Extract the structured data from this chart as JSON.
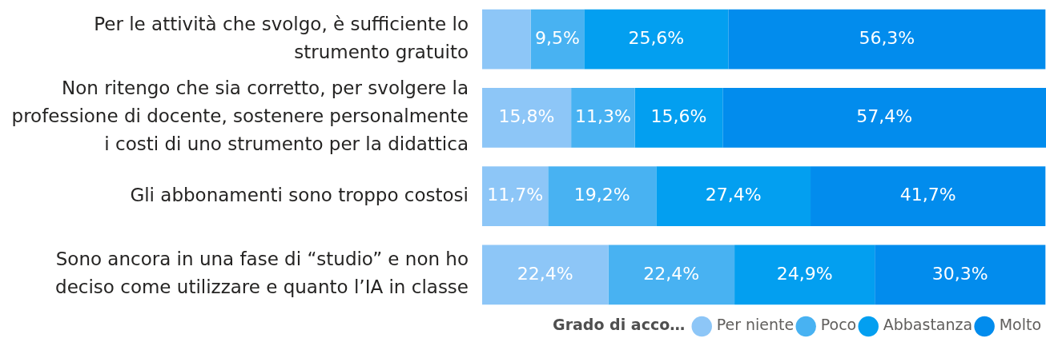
{
  "chart_data": {
    "type": "bar",
    "orientation": "horizontal",
    "stacked": true,
    "categories": [
      "Per le attività che svolgo, è sufficiente lo strumento gratuito",
      "Non ritengo che sia corretto, per svolgere la professione di docente, sostenere personalmente i costi di uno strumento per la didattica",
      "Gli abbonamenti sono troppo costosi",
      "Sono ancora in una fase di “studio” e non ho deciso come utilizzare e quanto l’IA in classe"
    ],
    "series": [
      {
        "name": "Per niente",
        "color": "#8dc6f7",
        "values": [
          8.6,
          15.8,
          11.7,
          22.4
        ],
        "value_labels": [
          null,
          "15,8%",
          "11,7%",
          "22,4%"
        ]
      },
      {
        "name": "Poco",
        "color": "#48b2f2",
        "values": [
          9.5,
          11.3,
          19.2,
          22.4
        ],
        "value_labels": [
          "9,5%",
          "11,3%",
          "19,2%",
          "22,4%"
        ]
      },
      {
        "name": "Abbastanza",
        "color": "#039ff0",
        "values": [
          25.6,
          15.6,
          27.4,
          24.9
        ],
        "value_labels": [
          "25,6%",
          "15,6%",
          "27,4%",
          "24,9%"
        ]
      },
      {
        "name": "Molto",
        "color": "#028ced",
        "values": [
          56.3,
          57.4,
          41.7,
          30.3
        ],
        "value_labels": [
          "56,3%",
          "57,4%",
          "41,7%",
          "30,3%"
        ]
      }
    ],
    "xlim": [
      0,
      100.1
    ],
    "tick_labels": "y",
    "legend": "bottom right",
    "legend_title": "Grado di acco…"
  }
}
